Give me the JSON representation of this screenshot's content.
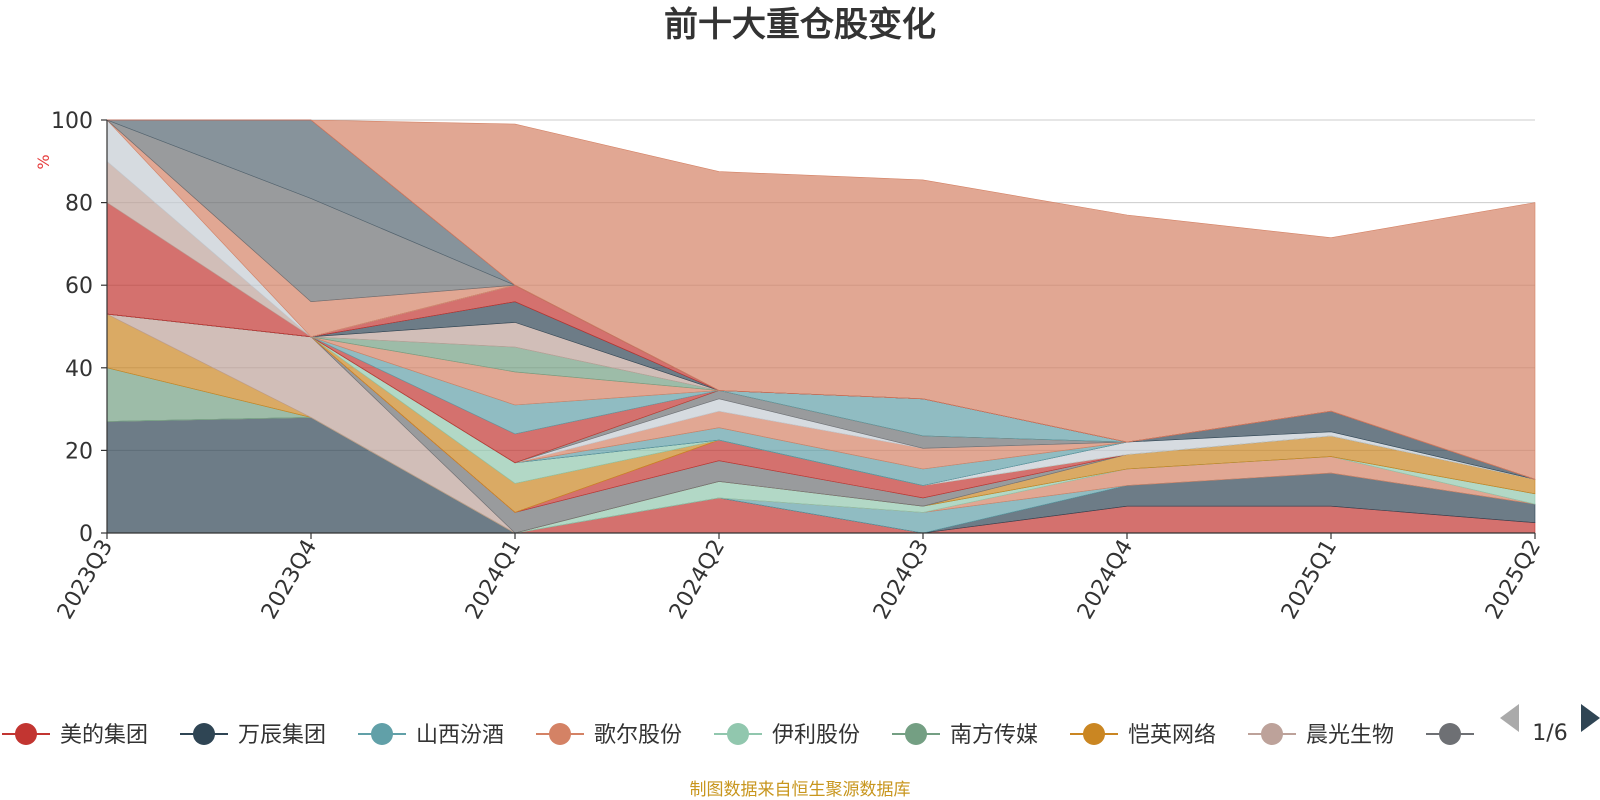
{
  "chart_data": {
    "type": "area",
    "stacked": true,
    "title": "前十大重仓股变化",
    "ylabel": "%",
    "ylim": [
      0,
      100
    ],
    "yticks": [
      0,
      20,
      40,
      60,
      80,
      100
    ],
    "grid": true,
    "legend_position": "bottom",
    "categories": [
      "2023Q3",
      "2023Q4",
      "2024Q1",
      "2024Q2",
      "2024Q3",
      "2024Q4",
      "2025Q1",
      "2025Q2"
    ],
    "series": [
      {
        "name": "美的集团",
        "color": "#c23531",
        "values": [
          0,
          0,
          0,
          8.5,
          0,
          6.5,
          6.5,
          2.5
        ]
      },
      {
        "name": "万辰集团",
        "color": "#2f4554",
        "values": [
          27,
          28,
          0,
          0,
          0,
          5,
          8,
          4.5
        ]
      },
      {
        "name": "山西汾酒",
        "color": "#61a0a8",
        "values": [
          0,
          0,
          0,
          0,
          5,
          0,
          0,
          0
        ]
      },
      {
        "name": "歌尔股份",
        "color": "#d48265",
        "values": [
          0,
          0,
          0,
          0,
          0,
          4,
          4,
          0
        ]
      },
      {
        "name": "伊利股份",
        "color": "#91c7ae",
        "values": [
          0,
          0,
          0,
          4,
          1.5,
          0,
          0,
          2.5
        ]
      },
      {
        "name": "南方传媒",
        "color": "#749f83",
        "values": [
          13,
          0,
          0,
          0,
          0,
          0,
          0,
          0
        ]
      },
      {
        "name": "恺英网络",
        "color": "#ca8622",
        "values": [
          13,
          0,
          0,
          0,
          0,
          3.5,
          5,
          3.5
        ]
      },
      {
        "name": "晨光生物",
        "color": "#bda29a",
        "values": [
          0,
          19.5,
          0,
          0,
          0,
          0,
          0,
          0
        ]
      },
      {
        "name": "",
        "color": "#6e7074",
        "values": [
          0,
          0,
          5,
          5,
          2,
          0,
          0,
          0
        ]
      }
    ],
    "legend": {
      "visible_entries": [
        "美的集团",
        "万辰集团",
        "山西汾酒",
        "歌尔股份",
        "伊利股份",
        "南方传媒",
        "恺英网络",
        "晨光生物"
      ],
      "page": "1/6"
    }
  },
  "extra_layers": [
    {
      "color": "#c23531",
      "values": [
        0,
        0,
        0,
        5,
        3,
        0,
        0,
        0
      ]
    },
    {
      "color": "#d48265",
      "values": [
        0,
        0,
        0,
        0,
        0,
        0,
        0,
        0
      ]
    },
    {
      "color": "#ca8622",
      "values": [
        0,
        0,
        7,
        0,
        0,
        0,
        0,
        0
      ]
    },
    {
      "color": "#91c7ae",
      "values": [
        0,
        0,
        5,
        0,
        0,
        0,
        0,
        0
      ]
    },
    {
      "color": "#c4ccd3",
      "values": [
        0,
        0,
        0,
        0,
        0,
        3,
        1,
        0
      ]
    },
    {
      "color": "#2f4554",
      "values": [
        0,
        0,
        0,
        0,
        0,
        0,
        5,
        0
      ]
    },
    {
      "color": "#61a0a8",
      "values": [
        0,
        0,
        0,
        3,
        4,
        0,
        0,
        0
      ]
    },
    {
      "color": "#d48265",
      "values": [
        0,
        0,
        0,
        4,
        5,
        0,
        0,
        0
      ]
    },
    {
      "color": "#c4ccd3",
      "values": [
        0,
        0,
        0,
        3,
        0,
        0,
        0,
        0
      ]
    },
    {
      "color": "#6e7074",
      "values": [
        0,
        0,
        0,
        2,
        3,
        0,
        0,
        0
      ]
    },
    {
      "color": "#91c7ae",
      "values": [
        0,
        0,
        0,
        0,
        0,
        0,
        0,
        0
      ]
    },
    {
      "color": "#749f83",
      "values": [
        0,
        0,
        0,
        0,
        0,
        0,
        0,
        0
      ]
    },
    {
      "color": "#c23531",
      "values": [
        0,
        0,
        7,
        0,
        0,
        0,
        0,
        0
      ]
    },
    {
      "color": "#61a0a8",
      "values": [
        0,
        0,
        7,
        0,
        9,
        0,
        0,
        0
      ]
    },
    {
      "color": "#d48265",
      "values": [
        0,
        0,
        8,
        0,
        0,
        0,
        0,
        0
      ]
    },
    {
      "color": "#749f83",
      "values": [
        0,
        0,
        6,
        0,
        0,
        0,
        0,
        0
      ]
    },
    {
      "color": "#bda29a",
      "values": [
        0,
        0,
        6,
        0,
        0,
        0,
        0,
        0
      ]
    },
    {
      "color": "#2f4554",
      "values": [
        0,
        0,
        5,
        0,
        0,
        0,
        0,
        0
      ]
    },
    {
      "color": "#c23531",
      "values": [
        0,
        0,
        4,
        0,
        0,
        0,
        0,
        0
      ]
    },
    {
      "color": "#61a0a8",
      "values": [
        0,
        0,
        0,
        0,
        0,
        0,
        0,
        0
      ]
    },
    {
      "color": "#c23531",
      "values": [
        27,
        0,
        0,
        0,
        0,
        0,
        0,
        0
      ]
    },
    {
      "color": "#bda29a",
      "values": [
        10,
        0,
        0,
        0,
        0,
        0,
        0,
        0
      ]
    },
    {
      "color": "#c4ccd3",
      "values": [
        10,
        0,
        0,
        0,
        0,
        0,
        0,
        0
      ]
    },
    {
      "color": "#d48265",
      "values": [
        0,
        8.5,
        0,
        0,
        0,
        0,
        0,
        0
      ]
    },
    {
      "color": "#6e7074",
      "values": [
        0,
        25,
        0,
        0,
        0,
        0,
        0,
        0
      ]
    },
    {
      "color": "#546570",
      "values": [
        0,
        19,
        0,
        0,
        0,
        0,
        0,
        0
      ]
    },
    {
      "color": "#c23531",
      "values": [
        0,
        0,
        0,
        0,
        0,
        0,
        0,
        0
      ]
    },
    {
      "color": "#d48265",
      "values": [
        0,
        0,
        39,
        53,
        53,
        55,
        42,
        67
      ]
    }
  ],
  "source": "制图数据来自恒生聚源数据库"
}
